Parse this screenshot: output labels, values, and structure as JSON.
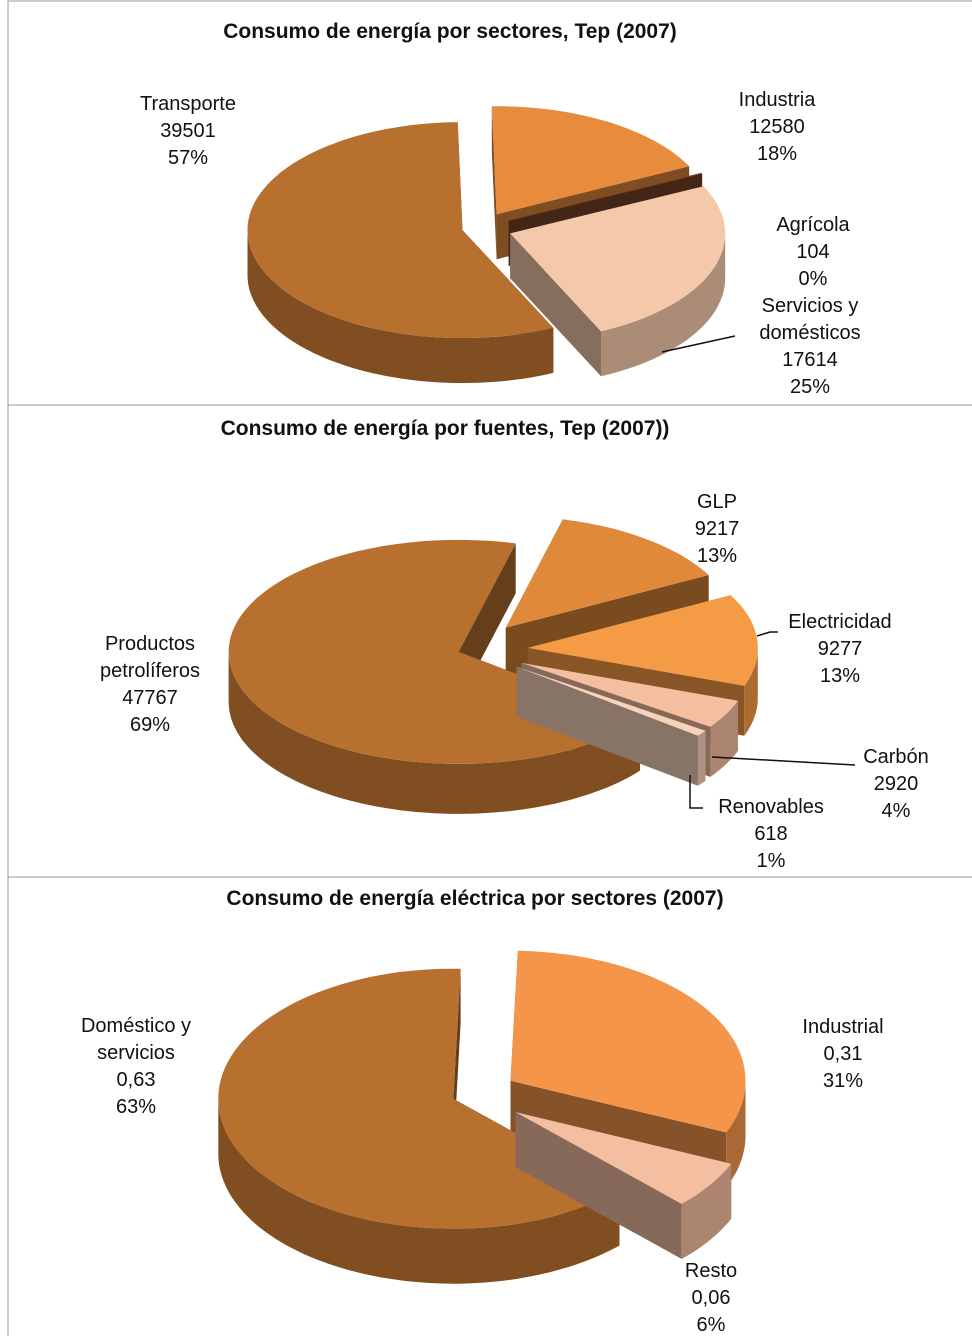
{
  "chart_data": [
    {
      "type": "pie",
      "title": "Consumo de energía por sectores, Tep (2007)",
      "categories": [
        "Transporte",
        "Industria",
        "Agrícola",
        "Servicios y domésticos"
      ],
      "values": [
        39501,
        12580,
        104,
        17614
      ],
      "percent_labels": [
        "57%",
        "18%",
        "0%",
        "25%"
      ],
      "colors": [
        "#b8702f",
        "#e68c3c",
        "#7a4526",
        "#f4c8a9"
      ]
    },
    {
      "type": "pie",
      "title": "Consumo de energía por fuentes, Tep (2007))",
      "categories": [
        "Productos petrolíferos",
        "GLP",
        "Electricidad",
        "Carbón",
        "Renovables"
      ],
      "values": [
        47767,
        9217,
        9277,
        2920,
        618
      ],
      "percent_labels": [
        "69%",
        "13%",
        "13%",
        "4%",
        "1%"
      ],
      "colors": [
        "#b8702f",
        "#e0893a",
        "#f59a45",
        "#f4bea0",
        "#f8d2bb"
      ]
    },
    {
      "type": "pie",
      "title": "Consumo de energía eléctrica por sectores (2007)",
      "categories": [
        "Doméstico y servicios",
        "Industrial",
        "Resto"
      ],
      "values": [
        0.63,
        0.31,
        0.06
      ],
      "value_labels": [
        "0,63",
        "0,31",
        "0,06"
      ],
      "percent_labels": [
        "63%",
        "31%",
        "6%"
      ],
      "colors": [
        "#b8702f",
        "#f4954a",
        "#f4bea0"
      ]
    }
  ]
}
